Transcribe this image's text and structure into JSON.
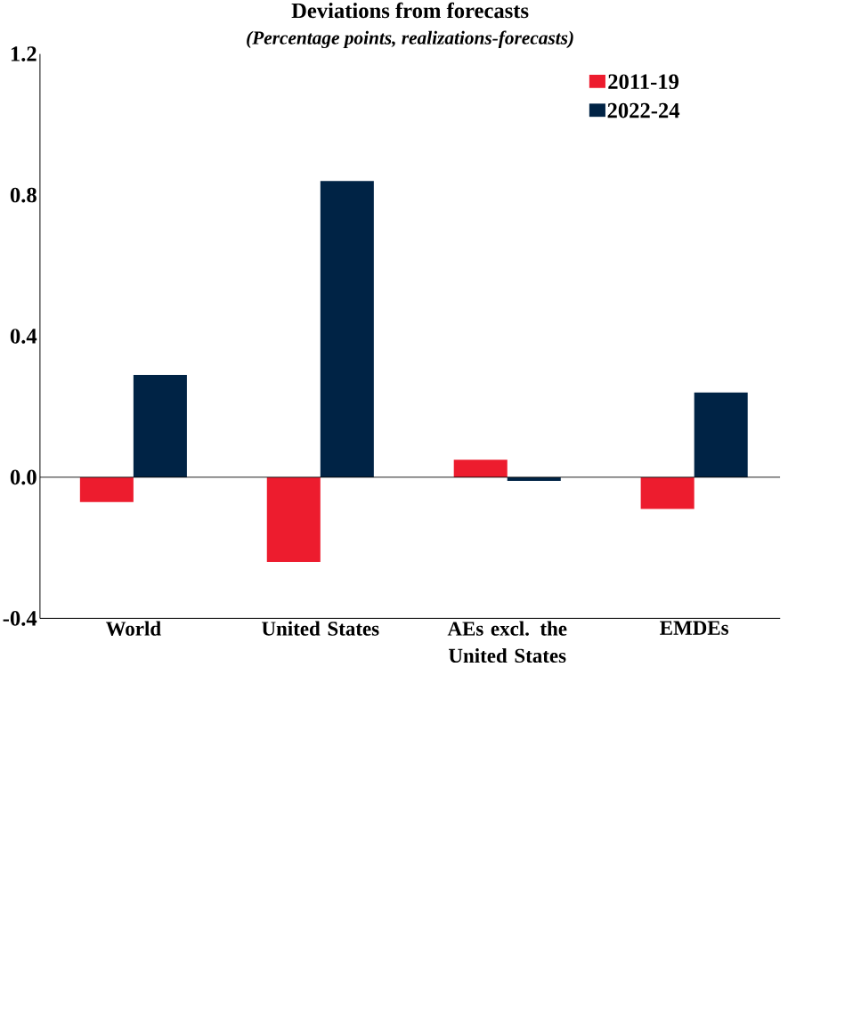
{
  "chart_data": {
    "type": "bar",
    "title": "Deviations from forecasts",
    "subtitle": "(Percentage points, realizations-forecasts)",
    "categories": [
      "World",
      "United States",
      "AEs excl. the United States",
      "EMDEs"
    ],
    "series": [
      {
        "name": "2011-19",
        "color": "#ed1c2e",
        "values": [
          -0.07,
          -0.24,
          0.05,
          -0.09
        ]
      },
      {
        "name": "2022-24",
        "color": "#002345",
        "values": [
          0.29,
          0.84,
          -0.01,
          0.24
        ]
      }
    ],
    "ylim": [
      -0.4,
      1.2
    ],
    "yticks": [
      {
        "value": -0.4,
        "label": "-0.4"
      },
      {
        "value": 0,
        "label": "0.0"
      },
      {
        "value": 0.4,
        "label": "0.4"
      },
      {
        "value": 0.8,
        "label": "0.8"
      },
      {
        "value": 1.2,
        "label": "1.2"
      }
    ],
    "ref_lines": [
      {
        "axis": "y",
        "value": 0,
        "color": "#000000"
      }
    ],
    "grid": false,
    "legend": "top right"
  }
}
